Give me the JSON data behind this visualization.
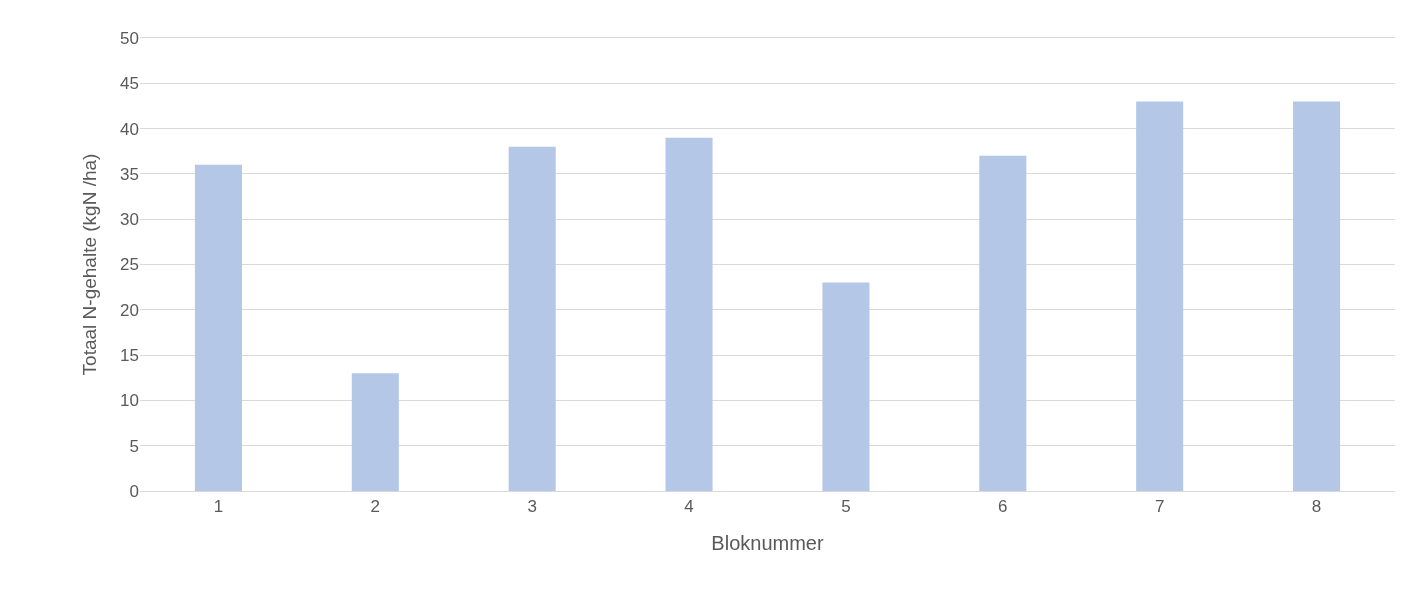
{
  "chart_data": {
    "type": "bar",
    "xlabel": "Bloknummer",
    "ylabel": "Totaal N-gehalte (kgN /ha)",
    "categories": [
      "1",
      "2",
      "3",
      "4",
      "5",
      "6",
      "7",
      "8"
    ],
    "values": [
      36,
      13,
      38,
      39,
      23,
      37,
      43,
      43
    ],
    "color": "#b4c7e7",
    "ylim": [
      0,
      50
    ],
    "yticks": [
      0,
      5,
      10,
      15,
      20,
      25,
      30,
      35,
      40,
      45,
      50
    ],
    "grid": "y"
  }
}
